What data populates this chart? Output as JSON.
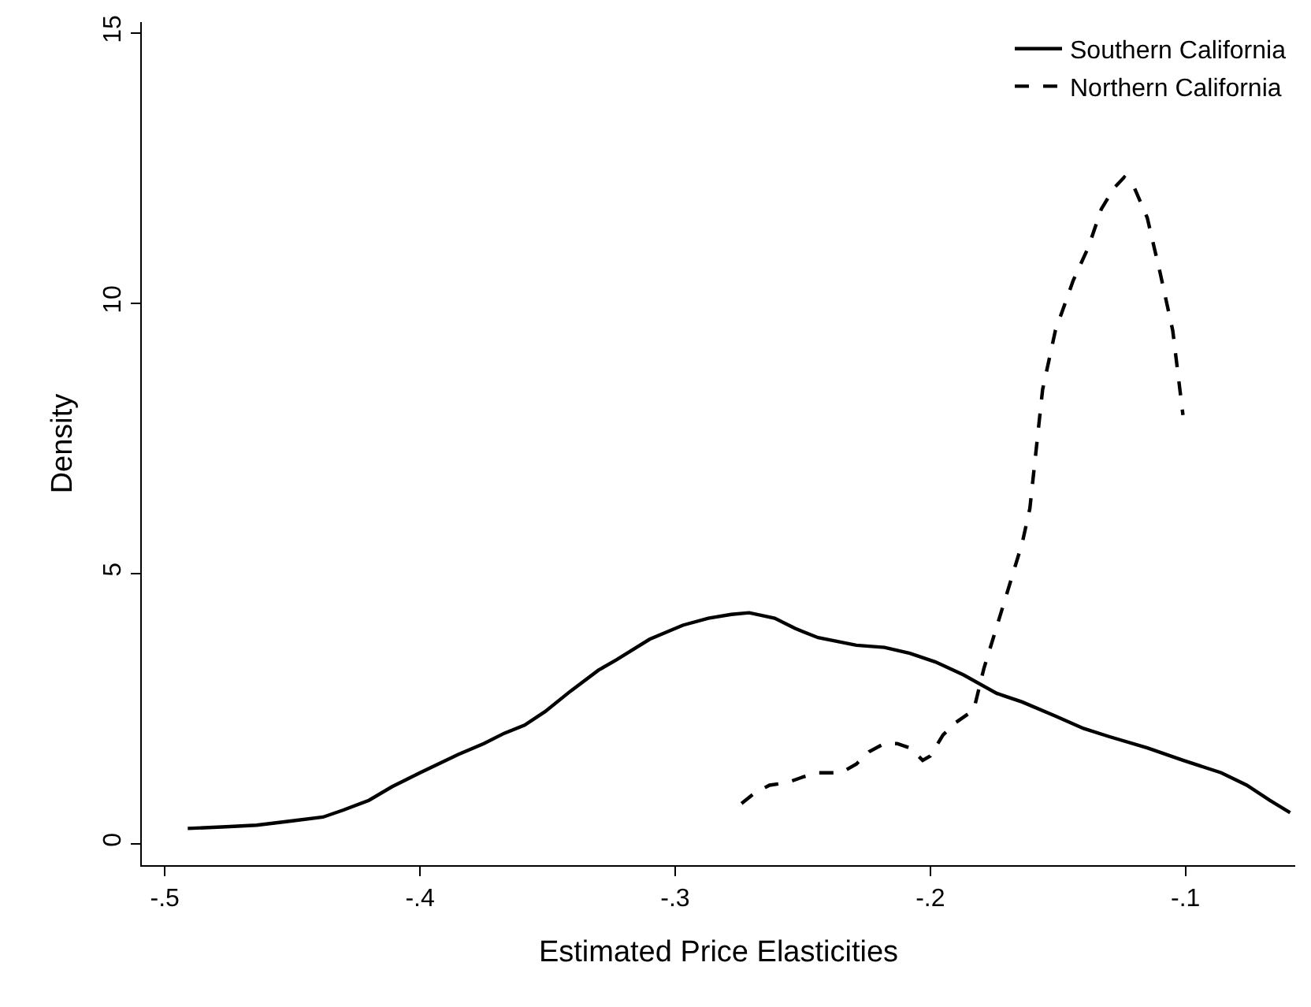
{
  "chart_data": {
    "type": "line",
    "xlabel": "Estimated Price Elasticities",
    "ylabel": "Density",
    "xlim": [
      -0.509,
      -0.057
    ],
    "xticks": [
      {
        "value": -0.5,
        "label": "-.5"
      },
      {
        "value": -0.4,
        "label": "-.4"
      },
      {
        "value": -0.3,
        "label": "-.3"
      },
      {
        "value": -0.2,
        "label": "-.2"
      },
      {
        "value": -0.1,
        "label": "-.1"
      }
    ],
    "ylim": [
      -0.4,
      15.2
    ],
    "yticks": [
      0,
      5,
      10,
      15
    ],
    "grid": false,
    "legend": "top right",
    "marker": "none",
    "series": [
      {
        "name": "Southern California",
        "color": "#000000",
        "line_style": "solid",
        "x": [
          -0.491,
          -0.476,
          -0.464,
          -0.45,
          -0.438,
          -0.43,
          -0.42,
          -0.411,
          -0.4,
          -0.385,
          -0.375,
          -0.367,
          -0.359,
          -0.351,
          -0.341,
          -0.33,
          -0.323,
          -0.31,
          -0.297,
          -0.287,
          -0.278,
          -0.271,
          -0.261,
          -0.253,
          -0.244,
          -0.229,
          -0.218,
          -0.208,
          -0.198,
          -0.187,
          -0.174,
          -0.164,
          -0.151,
          -0.14,
          -0.13,
          -0.115,
          -0.101,
          -0.086,
          -0.076,
          -0.067,
          -0.059
        ],
        "values": [
          0.28,
          0.31,
          0.34,
          0.42,
          0.49,
          0.62,
          0.8,
          1.05,
          1.31,
          1.65,
          1.85,
          2.04,
          2.19,
          2.44,
          2.82,
          3.21,
          3.4,
          3.78,
          4.04,
          4.17,
          4.24,
          4.27,
          4.17,
          3.98,
          3.81,
          3.67,
          3.63,
          3.52,
          3.36,
          3.12,
          2.78,
          2.62,
          2.36,
          2.13,
          1.98,
          1.77,
          1.54,
          1.31,
          1.08,
          0.8,
          0.57
        ]
      },
      {
        "name": "Northern California",
        "color": "#000000",
        "line_style": "dashed",
        "x": [
          -0.274,
          -0.269,
          -0.263,
          -0.256,
          -0.25,
          -0.244,
          -0.235,
          -0.229,
          -0.224,
          -0.218,
          -0.213,
          -0.208,
          -0.203,
          -0.2,
          -0.195,
          -0.19,
          -0.183,
          -0.179,
          -0.174,
          -0.169,
          -0.164,
          -0.161,
          -0.156,
          -0.151,
          -0.144,
          -0.138,
          -0.133,
          -0.128,
          -0.124,
          -0.12,
          -0.115,
          -0.11,
          -0.105,
          -0.101
        ],
        "values": [
          0.74,
          0.93,
          1.08,
          1.13,
          1.23,
          1.31,
          1.31,
          1.47,
          1.7,
          1.85,
          1.85,
          1.77,
          1.54,
          1.62,
          2.01,
          2.24,
          2.47,
          3.24,
          4.01,
          4.78,
          5.56,
          6.2,
          8.4,
          9.49,
          10.42,
          11.04,
          11.74,
          12.13,
          12.33,
          12.13,
          11.58,
          10.57,
          9.49,
          7.93
        ]
      }
    ]
  }
}
